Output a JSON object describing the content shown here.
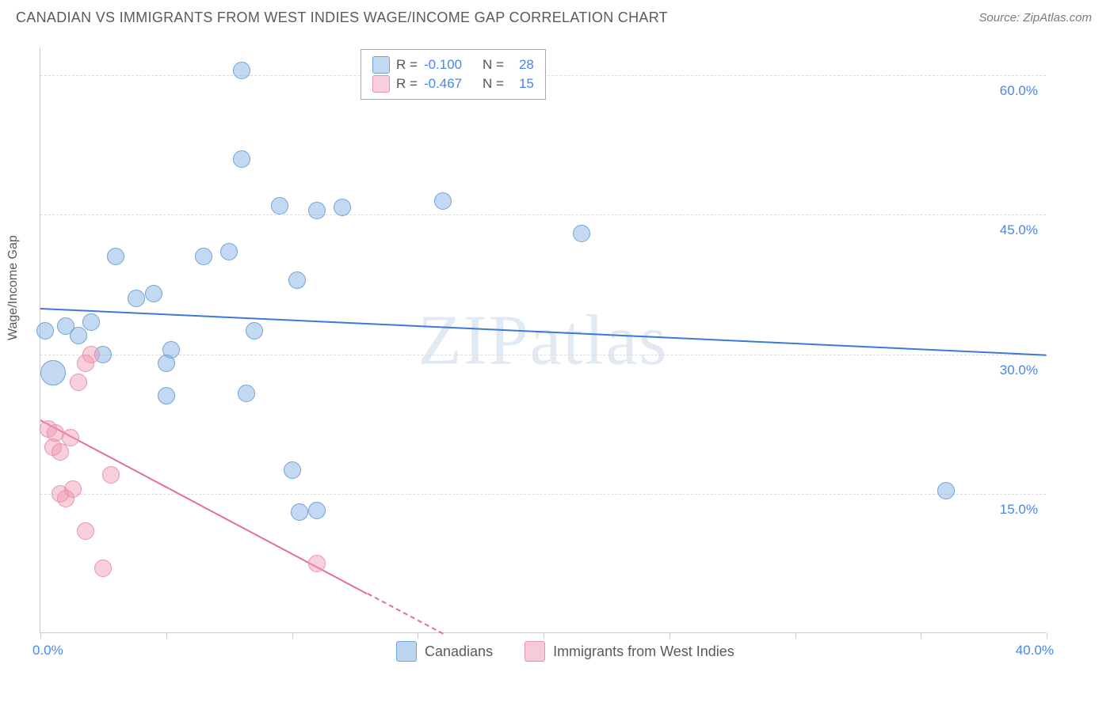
{
  "header": {
    "title": "CANADIAN VS IMMIGRANTS FROM WEST INDIES WAGE/INCOME GAP CORRELATION CHART",
    "source_prefix": "Source: ",
    "source": "ZipAtlas.com"
  },
  "chart": {
    "type": "scatter",
    "yaxis_label": "Wage/Income Gap",
    "watermark": "ZIPatlas",
    "xlim": [
      0,
      40
    ],
    "ylim": [
      0,
      63
    ],
    "background_color": "#ffffff",
    "grid_color": "#dddddd",
    "axis_color": "#cccccc",
    "yticks": [
      {
        "value": 15,
        "label": "15.0%"
      },
      {
        "value": 30,
        "label": "30.0%"
      },
      {
        "value": 45,
        "label": "45.0%"
      },
      {
        "value": 60,
        "label": "60.0%"
      }
    ],
    "xticks_minor": [
      0,
      5,
      10,
      15,
      20,
      25,
      30,
      35,
      40
    ],
    "xticks_labeled": [
      {
        "value": 0,
        "label": "0.0%"
      },
      {
        "value": 40,
        "label": "40.0%"
      }
    ],
    "ytick_color": "#4a86e8",
    "xtick_left_color": "#4a86e8",
    "xtick_right_color": "#4a86e8",
    "series": [
      {
        "name": "Canadians",
        "fill_color": "rgba(120, 170, 225, 0.45)",
        "stroke_color": "#6fa3d9",
        "trend_color": "#3b78d8",
        "marker_radius": 11,
        "correlation_r": "-0.100",
        "n": "28",
        "trend": {
          "x1": 0,
          "y1": 35.0,
          "x2": 40,
          "y2": 30.0,
          "dashed": false
        },
        "points": [
          {
            "x": 0.2,
            "y": 32.5
          },
          {
            "x": 0.5,
            "y": 28.0,
            "r": 16
          },
          {
            "x": 1.0,
            "y": 33.0
          },
          {
            "x": 1.5,
            "y": 32.0
          },
          {
            "x": 2.0,
            "y": 33.5
          },
          {
            "x": 2.5,
            "y": 30.0
          },
          {
            "x": 3.0,
            "y": 40.5
          },
          {
            "x": 3.8,
            "y": 36.0
          },
          {
            "x": 4.5,
            "y": 36.5
          },
          {
            "x": 5.0,
            "y": 25.5
          },
          {
            "x": 5.2,
            "y": 30.5
          },
          {
            "x": 5.0,
            "y": 29.0
          },
          {
            "x": 6.5,
            "y": 40.5
          },
          {
            "x": 7.5,
            "y": 41.0
          },
          {
            "x": 8.0,
            "y": 60.5
          },
          {
            "x": 8.0,
            "y": 51.0
          },
          {
            "x": 8.2,
            "y": 25.8
          },
          {
            "x": 8.5,
            "y": 32.5
          },
          {
            "x": 9.5,
            "y": 46.0
          },
          {
            "x": 10.0,
            "y": 17.5
          },
          {
            "x": 10.2,
            "y": 38.0
          },
          {
            "x": 10.3,
            "y": 13.0
          },
          {
            "x": 11.0,
            "y": 13.2
          },
          {
            "x": 11.0,
            "y": 45.5
          },
          {
            "x": 12.0,
            "y": 45.8
          },
          {
            "x": 16.0,
            "y": 46.5
          },
          {
            "x": 21.5,
            "y": 43.0
          },
          {
            "x": 36.0,
            "y": 15.3
          }
        ]
      },
      {
        "name": "Immigrants from West Indies",
        "fill_color": "rgba(240, 150, 175, 0.45)",
        "stroke_color": "#e893ab",
        "trend_color": "#e76d94",
        "marker_radius": 11,
        "correlation_r": "-0.467",
        "n": "15",
        "trend": {
          "x1": 0,
          "y1": 23.0,
          "x2": 16,
          "y2": 0,
          "dashed_after_x": 13
        },
        "points": [
          {
            "x": 0.3,
            "y": 22.0
          },
          {
            "x": 0.5,
            "y": 20.0
          },
          {
            "x": 0.6,
            "y": 21.5
          },
          {
            "x": 0.8,
            "y": 19.5
          },
          {
            "x": 0.8,
            "y": 15.0
          },
          {
            "x": 1.0,
            "y": 14.5
          },
          {
            "x": 1.2,
            "y": 21.0
          },
          {
            "x": 1.3,
            "y": 15.5
          },
          {
            "x": 1.5,
            "y": 27.0
          },
          {
            "x": 1.8,
            "y": 29.0
          },
          {
            "x": 1.8,
            "y": 11.0
          },
          {
            "x": 2.5,
            "y": 7.0
          },
          {
            "x": 2.8,
            "y": 17.0
          },
          {
            "x": 2.0,
            "y": 30.0
          },
          {
            "x": 11.0,
            "y": 7.5
          }
        ]
      }
    ],
    "legend_top": {
      "r_label": "R =",
      "n_label": "N =",
      "label_color": "#555555",
      "value_color": "#4a86e8"
    },
    "legend_bottom": [
      {
        "label": "Canadians",
        "fill": "rgba(120,170,225,0.5)",
        "stroke": "#6fa3d9"
      },
      {
        "label": "Immigrants from West Indies",
        "fill": "rgba(240,150,175,0.5)",
        "stroke": "#e893ab"
      }
    ]
  }
}
